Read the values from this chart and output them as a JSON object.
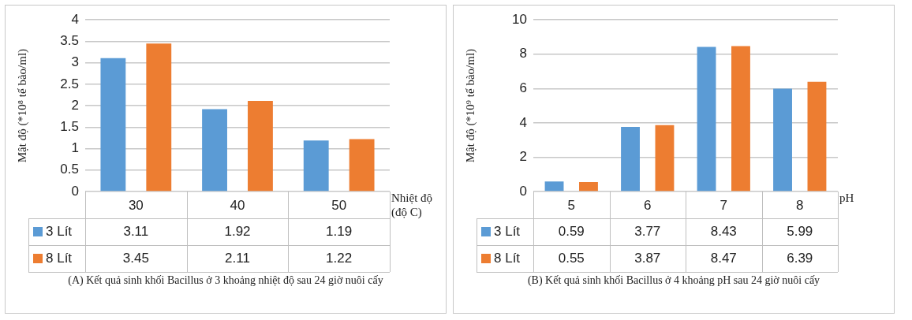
{
  "chart_data": [
    {
      "type": "bar",
      "xlabel": "Nhiệt độ (độ C)",
      "ylabel": "Mật độ (*10⁸ tế bào/ml)",
      "categories": [
        "30",
        "40",
        "50"
      ],
      "series": [
        {
          "name": "3 Lít",
          "color": "#5b9bd5",
          "values": [
            3.11,
            1.92,
            1.19
          ]
        },
        {
          "name": "8 Lít",
          "color": "#ed7d31",
          "values": [
            3.45,
            2.11,
            1.22
          ]
        }
      ],
      "ylim": [
        0,
        4
      ],
      "yticks": [
        0,
        0.5,
        1,
        1.5,
        2,
        2.5,
        3,
        3.5,
        4
      ],
      "grid": "y",
      "legend": "bottom",
      "data_labels": true,
      "annotations": [
        "(A) Kết quả sinh khối Bacillus ở 3 khoảng nhiệt độ sau 24 giờ nuôi cấy"
      ]
    },
    {
      "type": "bar",
      "xlabel": "pH",
      "ylabel": "Mật độ (*10⁹ tế bào/ml)",
      "categories": [
        "5",
        "6",
        "7",
        "8"
      ],
      "series": [
        {
          "name": "3 Lít",
          "color": "#5b9bd5",
          "values": [
            0.59,
            3.77,
            8.43,
            5.99
          ]
        },
        {
          "name": "8 Lít",
          "color": "#ed7d31",
          "values": [
            0.55,
            3.87,
            8.47,
            6.39
          ]
        }
      ],
      "ylim": [
        0,
        10
      ],
      "yticks": [
        0,
        2,
        4,
        6,
        8,
        10
      ],
      "grid": "y",
      "legend": "bottom",
      "data_labels": true,
      "annotations": [
        "(B) Kết quả sinh khối Bacillus ở 4 khoảng pH sau 24 giờ nuôi cấy"
      ]
    }
  ]
}
